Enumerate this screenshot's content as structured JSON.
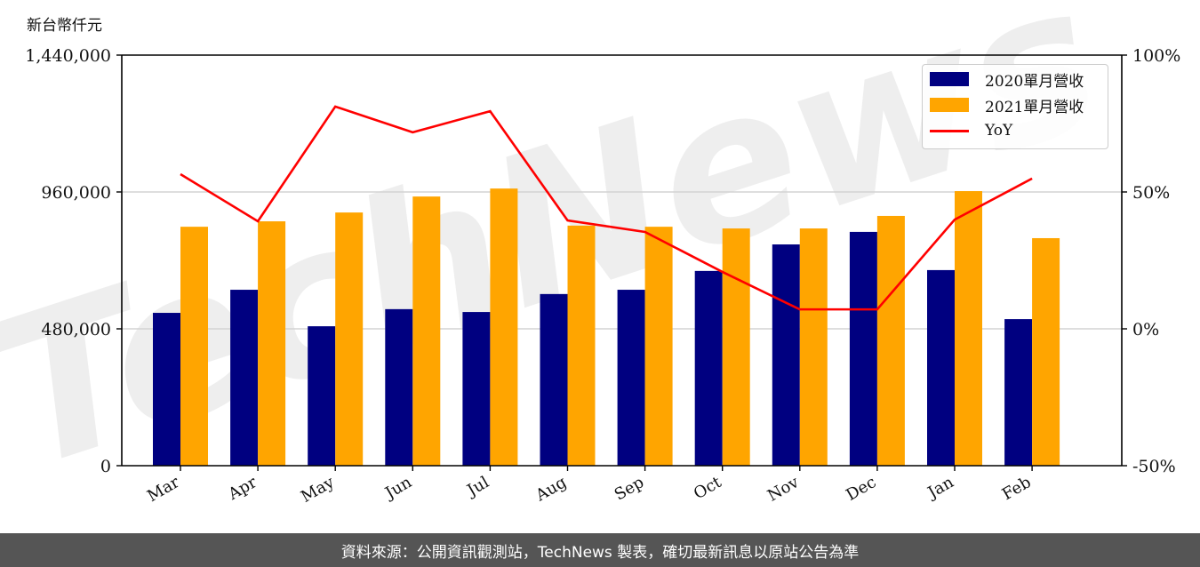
{
  "header": {
    "unit_label": "新台幣仟元"
  },
  "legend": {
    "items": [
      {
        "label": "2020單月營收",
        "color": "#000080",
        "kind": "bar"
      },
      {
        "label": "2021單月營收",
        "color": "#FFA500",
        "kind": "bar"
      },
      {
        "label": "YoY",
        "color": "#FF0000",
        "kind": "line"
      }
    ]
  },
  "footer": {
    "text": "資料來源：公開資訊觀測站，TechNews 製表，確切最新訊息以原站公告為準"
  },
  "watermark": {
    "text": "TechNews"
  },
  "chart_data": {
    "type": "bar",
    "title": "",
    "xlabel": "",
    "ylabel": "新台幣仟元",
    "y2label": "YoY",
    "categories": [
      "Mar",
      "Apr",
      "May",
      "Jun",
      "Jul",
      "Aug",
      "Sep",
      "Oct",
      "Nov",
      "Dec",
      "Jan",
      "Feb"
    ],
    "series": [
      {
        "name": "2020單月營收",
        "type": "bar",
        "axis": "left",
        "color": "#000080",
        "values": [
          536000,
          617000,
          489000,
          549000,
          539000,
          602000,
          617000,
          683000,
          776000,
          820000,
          686000,
          514000
        ]
      },
      {
        "name": "2021單月營收",
        "type": "bar",
        "axis": "left",
        "color": "#FFA500",
        "values": [
          838000,
          857000,
          888000,
          944000,
          972000,
          842000,
          838000,
          832000,
          832000,
          876000,
          963000,
          798000
        ]
      },
      {
        "name": "YoY",
        "type": "line",
        "axis": "right",
        "color": "#FF0000",
        "unit": "%",
        "values": [
          56.5,
          39.3,
          81.2,
          71.8,
          79.5,
          39.6,
          35.4,
          20.8,
          7.1,
          7.1,
          39.9,
          54.9
        ]
      }
    ],
    "ylim": [
      0,
      1440000
    ],
    "yticks": [
      0,
      480000,
      960000,
      1440000
    ],
    "ytick_labels": [
      "0",
      "480,000",
      "960,000",
      "1,440,000"
    ],
    "y2lim": [
      -50,
      100
    ],
    "y2ticks": [
      -50,
      0,
      50,
      100
    ],
    "y2tick_labels": [
      "-50%",
      "0%",
      "50%",
      "100%"
    ],
    "grid": "horizontal",
    "legend_position": "upper right"
  }
}
